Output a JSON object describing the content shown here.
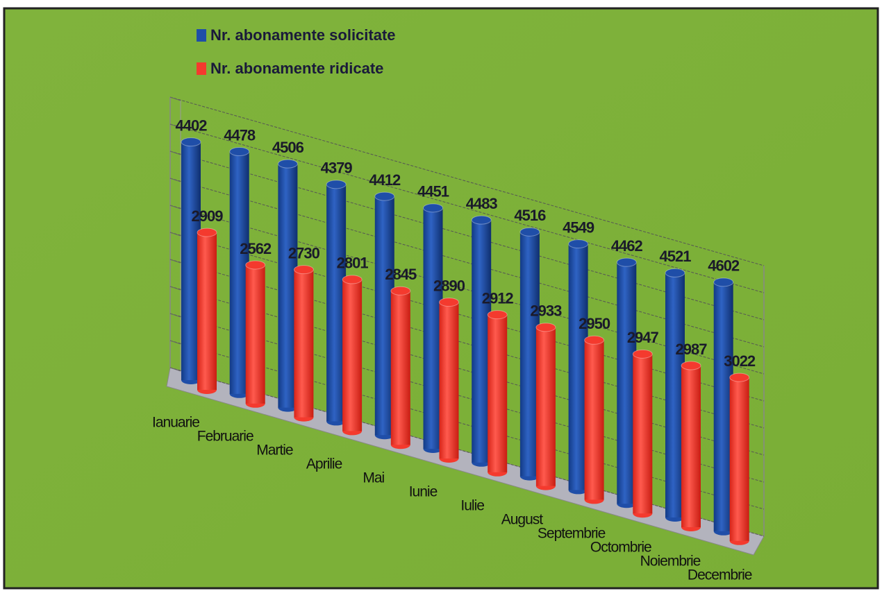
{
  "chart_data": {
    "type": "bar3d",
    "categories": [
      "Ianuarie",
      "Februarie",
      "Martie",
      "Aprilie",
      "Mai",
      "Iunie",
      "Iulie",
      "August",
      "Septembrie",
      "Octombrie",
      "Noiembrie",
      "Decembrie"
    ],
    "series": [
      {
        "name": "Nr. abonamente solicitate",
        "color": "#1f4ea8",
        "values": [
          4402,
          4478,
          4506,
          4379,
          4412,
          4451,
          4483,
          4516,
          4549,
          4462,
          4521,
          4602
        ]
      },
      {
        "name": "Nr. abonamente ridicate",
        "color": "#f43a2e",
        "values": [
          2909,
          2562,
          2730,
          2801,
          2845,
          2890,
          2912,
          2933,
          2950,
          2947,
          2987,
          3022
        ]
      }
    ],
    "ylim": [
      0,
      5000
    ],
    "yticks": [
      0,
      500,
      1000,
      1500,
      2000,
      2500,
      3000,
      3500,
      4000,
      4500,
      5000
    ],
    "grid": true
  }
}
